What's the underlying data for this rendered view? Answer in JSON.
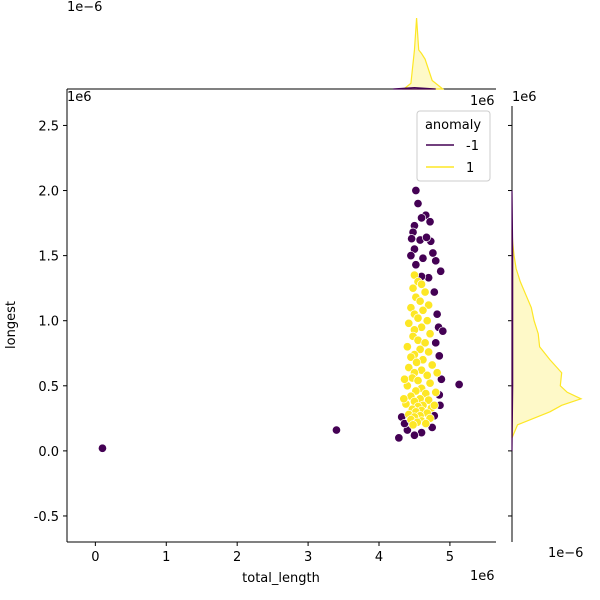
{
  "chart_data": {
    "type": "scatter",
    "title": "",
    "xlabel": "total_length",
    "ylabel": "longest",
    "x_offset_text": "1e6",
    "y_offset_text": "1e6",
    "xlim": [
      -0.4,
      5.65
    ],
    "ylim": [
      -0.7,
      2.78
    ],
    "xticks": [
      0,
      1,
      2,
      3,
      4,
      5
    ],
    "yticks": [
      -0.5,
      0.0,
      0.5,
      1.0,
      1.5,
      2.0,
      2.5
    ],
    "grid": false,
    "legend": {
      "title": "anomaly",
      "placement": "top-right",
      "entries": [
        {
          "label": "-1",
          "color": "#440154"
        },
        {
          "label": "1",
          "color": "#fde725"
        }
      ]
    },
    "series": [
      {
        "name": "-1",
        "color": "#440154",
        "points": [
          [
            0.1,
            0.02
          ],
          [
            3.4,
            0.16
          ],
          [
            5.13,
            0.51
          ],
          [
            4.28,
            0.1
          ],
          [
            4.32,
            0.26
          ],
          [
            4.52,
            2.0
          ],
          [
            4.55,
            1.9
          ],
          [
            4.66,
            1.81
          ],
          [
            4.6,
            1.79
          ],
          [
            4.5,
            1.73
          ],
          [
            4.48,
            1.68
          ],
          [
            4.46,
            1.63
          ],
          [
            4.72,
            1.76
          ],
          [
            4.73,
            1.61
          ],
          [
            4.8,
            1.46
          ],
          [
            4.87,
            1.38
          ],
          [
            4.76,
            1.52
          ],
          [
            4.7,
            1.33
          ],
          [
            4.6,
            1.34
          ],
          [
            4.52,
            1.43
          ],
          [
            4.78,
            1.22
          ],
          [
            4.82,
            1.05
          ],
          [
            4.84,
            0.95
          ],
          [
            4.9,
            0.92
          ],
          [
            4.8,
            0.83
          ],
          [
            4.85,
            0.73
          ],
          [
            4.88,
            0.55
          ],
          [
            4.85,
            0.43
          ],
          [
            4.86,
            0.35
          ],
          [
            4.78,
            0.27
          ],
          [
            4.75,
            0.18
          ],
          [
            4.6,
            0.14
          ],
          [
            4.5,
            0.12
          ],
          [
            4.4,
            0.16
          ],
          [
            4.36,
            0.21
          ],
          [
            4.5,
            1.55
          ],
          [
            4.58,
            1.62
          ],
          [
            4.62,
            1.48
          ],
          [
            4.67,
            1.64
          ],
          [
            4.45,
            1.5
          ]
        ]
      },
      {
        "name": "1",
        "color": "#fde725",
        "points": [
          [
            4.5,
            1.35
          ],
          [
            4.55,
            1.3
          ],
          [
            4.6,
            1.28
          ],
          [
            4.48,
            1.25
          ],
          [
            4.65,
            1.22
          ],
          [
            4.52,
            1.18
          ],
          [
            4.58,
            1.15
          ],
          [
            4.7,
            1.12
          ],
          [
            4.45,
            1.1
          ],
          [
            4.62,
            1.08
          ],
          [
            4.5,
            1.05
          ],
          [
            4.55,
            1.02
          ],
          [
            4.68,
            1.0
          ],
          [
            4.42,
            0.98
          ],
          [
            4.6,
            0.95
          ],
          [
            4.5,
            0.93
          ],
          [
            4.72,
            0.9
          ],
          [
            4.48,
            0.88
          ],
          [
            4.55,
            0.85
          ],
          [
            4.65,
            0.83
          ],
          [
            4.4,
            0.8
          ],
          [
            4.58,
            0.78
          ],
          [
            4.7,
            0.76
          ],
          [
            4.5,
            0.74
          ],
          [
            4.45,
            0.72
          ],
          [
            4.62,
            0.7
          ],
          [
            4.53,
            0.68
          ],
          [
            4.75,
            0.66
          ],
          [
            4.42,
            0.64
          ],
          [
            4.6,
            0.62
          ],
          [
            4.5,
            0.6
          ],
          [
            4.68,
            0.58
          ],
          [
            4.47,
            0.56
          ],
          [
            4.55,
            0.54
          ],
          [
            4.72,
            0.52
          ],
          [
            4.4,
            0.5
          ],
          [
            4.6,
            0.48
          ],
          [
            4.52,
            0.46
          ],
          [
            4.66,
            0.44
          ],
          [
            4.45,
            0.42
          ],
          [
            4.58,
            0.4
          ],
          [
            4.7,
            0.39
          ],
          [
            4.5,
            0.38
          ],
          [
            4.38,
            0.36
          ],
          [
            4.62,
            0.35
          ],
          [
            4.55,
            0.34
          ],
          [
            4.74,
            0.33
          ],
          [
            4.47,
            0.32
          ],
          [
            4.6,
            0.31
          ],
          [
            4.52,
            0.3
          ],
          [
            4.68,
            0.29
          ],
          [
            4.42,
            0.28
          ],
          [
            4.58,
            0.27
          ],
          [
            4.5,
            0.26
          ],
          [
            4.72,
            0.25
          ],
          [
            4.45,
            0.24
          ],
          [
            4.6,
            0.23
          ],
          [
            4.54,
            0.22
          ],
          [
            4.66,
            0.21
          ],
          [
            4.48,
            0.2
          ],
          [
            4.8,
            0.45
          ],
          [
            4.82,
            0.6
          ],
          [
            4.78,
            0.35
          ],
          [
            4.35,
            0.4
          ],
          [
            4.36,
            0.55
          ]
        ]
      }
    ],
    "marginals": {
      "top": {
        "type": "kde",
        "axis": "x",
        "offset_text": "1e−6",
        "series": [
          {
            "name": "1",
            "color": "#fde725",
            "x": [
              4.35,
              4.45,
              4.5,
              4.53,
              4.56,
              4.6,
              4.65,
              4.75,
              4.9
            ],
            "density": [
              0.0,
              0.08,
              0.55,
              1.0,
              0.55,
              0.5,
              0.42,
              0.12,
              0.0
            ]
          },
          {
            "name": "-1",
            "color": "#440154",
            "x": [
              4.2,
              4.5,
              4.8
            ],
            "density": [
              0.0,
              0.02,
              0.0
            ]
          }
        ]
      },
      "right": {
        "type": "kde",
        "axis": "y",
        "offset_text": "1e−6",
        "series": [
          {
            "name": "1",
            "color": "#fde725",
            "y": [
              0.1,
              0.2,
              0.3,
              0.35,
              0.4,
              0.45,
              0.5,
              0.6,
              0.7,
              0.8,
              0.9,
              1.0,
              1.1,
              1.2,
              1.3,
              1.4,
              1.5,
              1.6,
              1.7
            ],
            "density": [
              0.0,
              0.08,
              0.55,
              0.72,
              1.0,
              0.8,
              0.7,
              0.72,
              0.55,
              0.4,
              0.38,
              0.32,
              0.28,
              0.2,
              0.12,
              0.06,
              0.03,
              0.01,
              0.0
            ]
          },
          {
            "name": "-1",
            "color": "#440154",
            "y": [
              0.0,
              0.5,
              1.0,
              1.5,
              2.0
            ],
            "density": [
              0.0,
              0.01,
              0.01,
              0.01,
              0.0
            ]
          }
        ]
      }
    }
  }
}
